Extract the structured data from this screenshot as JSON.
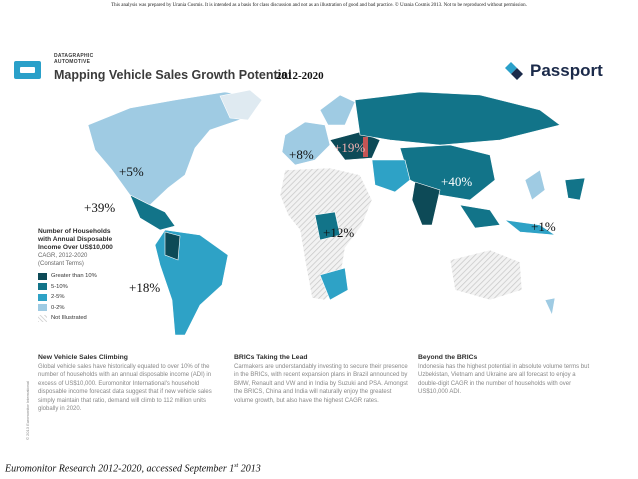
{
  "disclaimer": "This analysis was prepared by Urania Cosmis. It is intended as a basis for class discussion and not as an illustration of good and bad practice. © Urania Cosmis 2013. Not to be reproduced without permission.",
  "header": {
    "kicker_1": "DATAGRAPHIC",
    "kicker_2": "AUTOMOTIVE",
    "title": "Mapping Vehicle Sales Growth Potential",
    "period": "2012-2020",
    "brand": "Passport"
  },
  "map_labels": [
    {
      "text": "+5%",
      "region": "North America"
    },
    {
      "text": "+39%",
      "region": "Central America"
    },
    {
      "text": "+18%",
      "region": "South America"
    },
    {
      "text": "+8%",
      "region": "Europe"
    },
    {
      "text": "+19%",
      "region": "Eastern Europe"
    },
    {
      "text": "+40%",
      "region": "Asia"
    },
    {
      "text": "+12%",
      "region": "Africa"
    },
    {
      "text": "+1%",
      "region": "Japan"
    }
  ],
  "legend": {
    "title": "Number of Households with Annual Disposable Income Over US$10,000",
    "subtitle_1": "CAGR, 2012-2020",
    "subtitle_2": "(Constant Terms)",
    "items": [
      {
        "label": "Greater than 10%",
        "color": "#0d4a57"
      },
      {
        "label": "5-10%",
        "color": "#127489"
      },
      {
        "label": "2-5%",
        "color": "#2ea2c6"
      },
      {
        "label": "0-2%",
        "color": "#9fcbe3"
      },
      {
        "label": "Not Illustrated",
        "color": "#d9d9d9"
      }
    ]
  },
  "columns": [
    {
      "heading": "New Vehicle Sales Climbing",
      "body": "Global vehicle sales have historically equated to over 10% of the number of households with an annual disposable income (ADI) in excess of US$10,000. Euromonitor International's household disposable income forecast data suggest that if new vehicle sales simply maintain that ratio, demand will climb to 112 million units globally in 2020."
    },
    {
      "heading": "BRICs Taking the Lead",
      "body": "Carmakers are understandably investing to secure their presence in the BRICs, with recent expansion plans in Brazil announced by BMW, Renault and VW and in India by Suzuki and PSA. Amongst the BRICS, China and India will naturally enjoy the greatest volume growth, but also have the highest CAGR rates."
    },
    {
      "heading": "Beyond the BRICs",
      "body": "Indonesia has the highest potential in absolute volume terms but Uzbekistan, Vietnam and Ukraine are all forecast to enjoy a double-digit CAGR in the number of households with over US$10,000 ADI."
    }
  ],
  "side_note": "© 2013 Euromonitor International",
  "footer": {
    "text": "Euromonitor Research 2012-2020, accessed September 1",
    "sup": "st",
    "tail": " 2013"
  }
}
